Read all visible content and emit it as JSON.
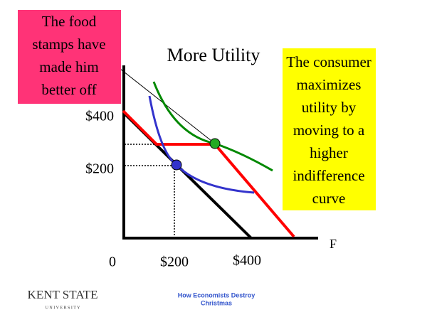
{
  "slide": {
    "title": "More Utility",
    "left_box": {
      "lines": [
        "The food",
        "stamps have",
        "made him",
        "better off"
      ]
    },
    "right_box": {
      "lines": [
        "The consumer",
        "maximizes",
        "utility by",
        "moving to a",
        "higher",
        "indifference",
        "curve"
      ]
    },
    "y_labels": [
      "$400",
      "$200"
    ],
    "x_labels": [
      "0",
      "$200",
      "$400"
    ],
    "x_axis_label": "F",
    "logo": {
      "name": "KENT STATE",
      "sub": "U N I V E R S I T Y"
    },
    "footer": [
      "How Economists Destroy",
      "Christmas"
    ]
  }
}
